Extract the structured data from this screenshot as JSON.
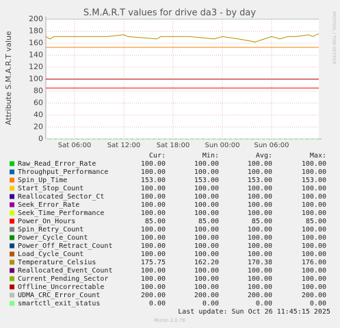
{
  "chart_data": {
    "type": "line",
    "title": "S.M.A.R.T values for drive da3 - by day",
    "y_label": "Attribute S.M.A.R.T value",
    "side_label": "RRDTOOL / TOBI OETIKER",
    "ylim": [
      0,
      200
    ],
    "yticks": [
      0,
      20,
      40,
      60,
      80,
      100,
      120,
      140,
      160,
      180,
      200
    ],
    "xlim": [
      2.5,
      35.75
    ],
    "xticks": [
      {
        "value": 6,
        "label": "Sat 06:00"
      },
      {
        "value": 12,
        "label": "Sat 12:00"
      },
      {
        "value": 18,
        "label": "Sat 18:00"
      },
      {
        "value": 24,
        "label": "Sun 00:00"
      },
      {
        "value": 30,
        "label": "Sun 06:00"
      }
    ],
    "grid": true,
    "x": [
      2.5,
      3,
      3.5,
      10,
      12,
      12.5,
      16,
      16.5,
      20,
      23,
      24,
      26,
      28,
      30,
      31,
      32,
      33,
      34.5,
      35,
      35.75
    ],
    "columns": [
      "Cur:",
      "Min:",
      "Avg:",
      "Max:"
    ],
    "series": [
      {
        "name": "Raw_Read_Error_Rate",
        "color": "#00cc00",
        "values": [
          100,
          100,
          100,
          100,
          100,
          100,
          100,
          100,
          100,
          100,
          100,
          100,
          100,
          100,
          100,
          100,
          100,
          100,
          100,
          100
        ],
        "stats": [
          "100.00",
          "100.00",
          "100.00",
          "100.00"
        ]
      },
      {
        "name": "Throughput_Performance",
        "color": "#0066b3",
        "values": [
          100,
          100,
          100,
          100,
          100,
          100,
          100,
          100,
          100,
          100,
          100,
          100,
          100,
          100,
          100,
          100,
          100,
          100,
          100,
          100
        ],
        "stats": [
          "100.00",
          "100.00",
          "100.00",
          "100.00"
        ]
      },
      {
        "name": "Spin_Up_Time",
        "color": "#ff8000",
        "values": [
          153,
          153,
          153,
          153,
          153,
          153,
          153,
          153,
          153,
          153,
          153,
          153,
          153,
          153,
          153,
          153,
          153,
          153,
          153,
          153
        ],
        "stats": [
          "153.00",
          "153.00",
          "153.00",
          "153.00"
        ]
      },
      {
        "name": "Start_Stop_Count",
        "color": "#ffcc00",
        "values": [
          100,
          100,
          100,
          100,
          100,
          100,
          100,
          100,
          100,
          100,
          100,
          100,
          100,
          100,
          100,
          100,
          100,
          100,
          100,
          100
        ],
        "stats": [
          "100.00",
          "100.00",
          "100.00",
          "100.00"
        ]
      },
      {
        "name": "Reallocated_Sector_Ct",
        "color": "#330099",
        "values": [
          100,
          100,
          100,
          100,
          100,
          100,
          100,
          100,
          100,
          100,
          100,
          100,
          100,
          100,
          100,
          100,
          100,
          100,
          100,
          100
        ],
        "stats": [
          "100.00",
          "100.00",
          "100.00",
          "100.00"
        ]
      },
      {
        "name": "Seek_Error_Rate",
        "color": "#990099",
        "values": [
          100,
          100,
          100,
          100,
          100,
          100,
          100,
          100,
          100,
          100,
          100,
          100,
          100,
          100,
          100,
          100,
          100,
          100,
          100,
          100
        ],
        "stats": [
          "100.00",
          "100.00",
          "100.00",
          "100.00"
        ]
      },
      {
        "name": "Seek_Time_Performance",
        "color": "#ccff00",
        "values": [
          100,
          100,
          100,
          100,
          100,
          100,
          100,
          100,
          100,
          100,
          100,
          100,
          100,
          100,
          100,
          100,
          100,
          100,
          100,
          100
        ],
        "stats": [
          "100.00",
          "100.00",
          "100.00",
          "100.00"
        ]
      },
      {
        "name": "Power_On_Hours",
        "color": "#ff0000",
        "values": [
          85,
          85,
          85,
          85,
          85,
          85,
          85,
          85,
          85,
          85,
          85,
          85,
          85,
          85,
          85,
          85,
          85,
          85,
          85,
          85
        ],
        "stats": [
          "85.00",
          "85.00",
          "85.00",
          "85.00"
        ]
      },
      {
        "name": "Spin_Retry_Count",
        "color": "#808080",
        "values": [
          100,
          100,
          100,
          100,
          100,
          100,
          100,
          100,
          100,
          100,
          100,
          100,
          100,
          100,
          100,
          100,
          100,
          100,
          100,
          100
        ],
        "stats": [
          "100.00",
          "100.00",
          "100.00",
          "100.00"
        ]
      },
      {
        "name": "Power_Cycle_Count",
        "color": "#008f00",
        "values": [
          100,
          100,
          100,
          100,
          100,
          100,
          100,
          100,
          100,
          100,
          100,
          100,
          100,
          100,
          100,
          100,
          100,
          100,
          100,
          100
        ],
        "stats": [
          "100.00",
          "100.00",
          "100.00",
          "100.00"
        ]
      },
      {
        "name": "Power_Off_Retract_Count",
        "color": "#00487d",
        "values": [
          100,
          100,
          100,
          100,
          100,
          100,
          100,
          100,
          100,
          100,
          100,
          100,
          100,
          100,
          100,
          100,
          100,
          100,
          100,
          100
        ],
        "stats": [
          "100.00",
          "100.00",
          "100.00",
          "100.00"
        ]
      },
      {
        "name": "Load_Cycle_Count",
        "color": "#b35a00",
        "values": [
          100,
          100,
          100,
          100,
          100,
          100,
          100,
          100,
          100,
          100,
          100,
          100,
          100,
          100,
          100,
          100,
          100,
          100,
          100,
          100
        ],
        "stats": [
          "100.00",
          "100.00",
          "100.00",
          "100.00"
        ]
      },
      {
        "name": "Temperature_Celsius",
        "color": "#b38f00",
        "values": [
          171,
          167,
          171,
          171,
          174,
          171,
          167,
          171,
          171,
          167,
          171,
          167,
          162,
          171,
          167,
          171,
          171,
          174,
          171,
          175.75
        ],
        "stats": [
          "175.75",
          "162.20",
          "170.38",
          "176.00"
        ]
      },
      {
        "name": "Reallocated_Event_Count",
        "color": "#6b006b",
        "values": [
          100,
          100,
          100,
          100,
          100,
          100,
          100,
          100,
          100,
          100,
          100,
          100,
          100,
          100,
          100,
          100,
          100,
          100,
          100,
          100
        ],
        "stats": [
          "100.00",
          "100.00",
          "100.00",
          "100.00"
        ]
      },
      {
        "name": "Current_Pending_Sector",
        "color": "#8fb300",
        "values": [
          100,
          100,
          100,
          100,
          100,
          100,
          100,
          100,
          100,
          100,
          100,
          100,
          100,
          100,
          100,
          100,
          100,
          100,
          100,
          100
        ],
        "stats": [
          "100.00",
          "100.00",
          "100.00",
          "100.00"
        ]
      },
      {
        "name": "Offline_Uncorrectable",
        "color": "#b30000",
        "values": [
          100,
          100,
          100,
          100,
          100,
          100,
          100,
          100,
          100,
          100,
          100,
          100,
          100,
          100,
          100,
          100,
          100,
          100,
          100,
          100
        ],
        "stats": [
          "100.00",
          "100.00",
          "100.00",
          "100.00"
        ]
      },
      {
        "name": "UDMA_CRC_Error_Count",
        "color": "#bebebe",
        "values": [
          200,
          200,
          200,
          200,
          200,
          200,
          200,
          200,
          200,
          200,
          200,
          200,
          200,
          200,
          200,
          200,
          200,
          200,
          200,
          200
        ],
        "stats": [
          "200.00",
          "200.00",
          "200.00",
          "200.00"
        ]
      },
      {
        "name": "smartctl_exit_status",
        "color": "#80ff80",
        "values": [
          0,
          0,
          0,
          0,
          0,
          0,
          0,
          0,
          0,
          0,
          0,
          0,
          0,
          0,
          0,
          0,
          0,
          0,
          0,
          0
        ],
        "stats": [
          "0.00",
          "0.00",
          "0.00",
          "0.00"
        ]
      }
    ],
    "last_update": "Last update: Sun Oct 26 11:45:15 2025",
    "footer": "Munin 2.0.76"
  }
}
